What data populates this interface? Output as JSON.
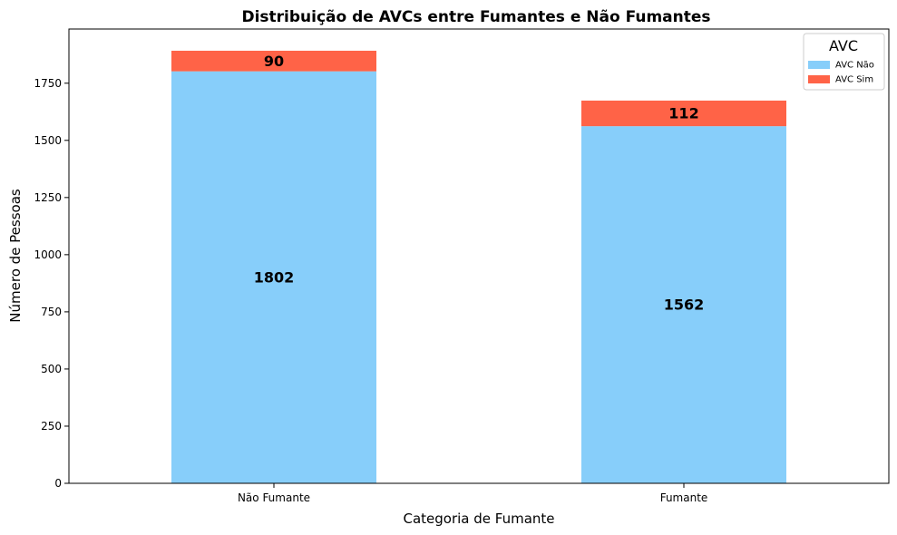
{
  "chart_data": {
    "type": "bar",
    "stacked": true,
    "title": "Distribuição de AVCs entre Fumantes e Não Fumantes",
    "xlabel": "Categoria de Fumante",
    "ylabel": "Número de Pessoas",
    "categories": [
      "Não Fumante",
      "Fumante"
    ],
    "series": [
      {
        "name": "AVC Não",
        "values": [
          1802,
          1562
        ],
        "color": "#87CEFA"
      },
      {
        "name": "AVC Sim",
        "values": [
          90,
          112
        ],
        "color": "#FF6347"
      }
    ],
    "ylim": [
      0,
      1987
    ],
    "yticks": [
      0,
      250,
      500,
      750,
      1000,
      1250,
      1500,
      1750
    ],
    "grid": false,
    "legend": {
      "title": "AVC",
      "position": "top-right"
    }
  }
}
